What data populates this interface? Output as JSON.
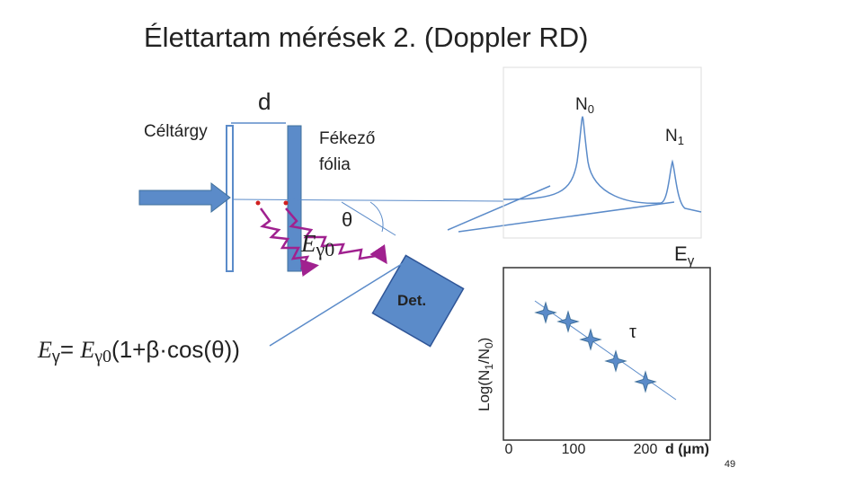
{
  "title": "Élettartam mérések 2. (Doppler RD)",
  "labels": {
    "d": "d",
    "target": "Céltárgy",
    "foil": [
      "Fékező",
      "fólia"
    ],
    "n0": [
      "N",
      "0"
    ],
    "n1": [
      "N",
      "1"
    ],
    "theta": "θ",
    "e_gamma0": [
      "E",
      "γ0"
    ],
    "e_gamma": [
      "E",
      "γ"
    ],
    "detector": "Det.",
    "tau": "τ"
  },
  "formula": [
    "E",
    "γ",
    "= ",
    "E",
    "γ0",
    "(1+β·cos(θ))"
  ],
  "plot": {
    "y_label": [
      "Log(N",
      "1",
      "/N",
      "0",
      ")"
    ],
    "x_ticks": [
      "0",
      "100",
      "200"
    ],
    "x_label": "d (μm)"
  },
  "page_number": "49"
}
